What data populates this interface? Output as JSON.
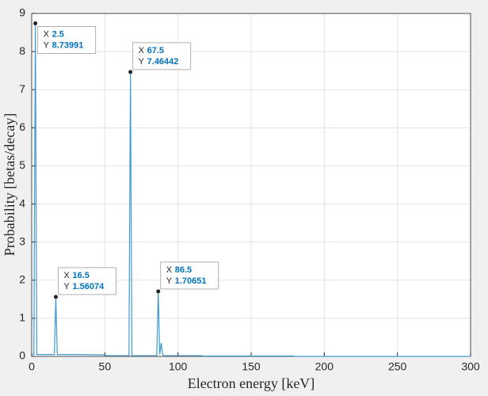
{
  "chart_data": {
    "type": "line",
    "x_label": "Electron energy [keV]",
    "y_label": "Probability [betas/decay]",
    "x": [
      0.5,
      1.5,
      2.5,
      3.5,
      4.5,
      10,
      15.5,
      16.5,
      17.5,
      18.5,
      30,
      50,
      51,
      60,
      66.5,
      67.5,
      68.5,
      69.5,
      80,
      85.5,
      86.5,
      87.5,
      88.5,
      89.5,
      90.5,
      100,
      116,
      117,
      150,
      179,
      180,
      190,
      300
    ],
    "values": [
      0.05,
      0.05,
      8.73991,
      0.05,
      0.05,
      0.05,
      0.05,
      1.56074,
      0.05,
      0.05,
      0.05,
      0.04,
      0.02,
      0.02,
      0.02,
      7.46442,
      0.02,
      0.02,
      0.02,
      0.02,
      1.70651,
      0.05,
      0.35,
      0.05,
      0.02,
      0.02,
      0.02,
      0.01,
      0.01,
      0.01,
      0,
      0,
      0
    ],
    "color": "#3d9ad1",
    "xlim": [
      0,
      300
    ],
    "xticks": [
      0,
      50,
      100,
      150,
      200,
      250,
      300
    ],
    "ylim": [
      0,
      9
    ],
    "yticks": [
      0,
      1,
      2,
      3,
      4,
      5,
      6,
      7,
      8,
      9
    ],
    "grid": true,
    "datatip_x_label": "X",
    "datatip_y_label": "Y",
    "datatips": [
      {
        "x": 2.5,
        "y": 8.73991
      },
      {
        "x": 16.5,
        "y": 1.56074
      },
      {
        "x": 67.5,
        "y": 7.46442
      },
      {
        "x": 86.5,
        "y": 1.70651
      }
    ]
  }
}
